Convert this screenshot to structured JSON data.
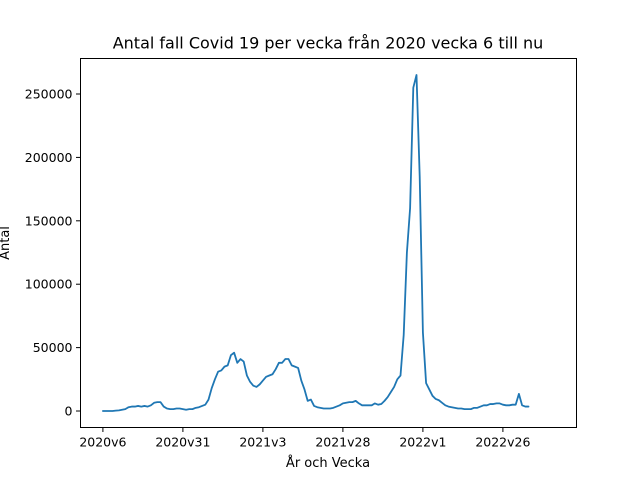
{
  "chart_data": {
    "type": "line",
    "title": "Antal fall Covid 19 per vecka från 2020 vecka 6 till nu",
    "xlabel": "År och Vecka",
    "ylabel": "Antal",
    "x_tick_labels": [
      "2020v6",
      "2020v31",
      "2021v3",
      "2021v28",
      "2022v1",
      "2022v26"
    ],
    "y_ticks": [
      0,
      50000,
      100000,
      150000,
      200000,
      250000
    ],
    "xlim": [
      -7,
      148
    ],
    "ylim": [
      -13000,
      278000
    ],
    "grid": false,
    "color": "#1f77b4",
    "series": [
      {
        "values": [
          0,
          0,
          0,
          0,
          300,
          500,
          1000,
          1500,
          3000,
          3500,
          3500,
          4000,
          3500,
          4000,
          3500,
          4500,
          6500,
          7000,
          7000,
          3500,
          2000,
          1500,
          1500,
          2000,
          2000,
          1500,
          1000,
          1500,
          1500,
          2500,
          3000,
          4000,
          5000,
          9000,
          18000,
          25000,
          31000,
          32000,
          35000,
          36000,
          44000,
          46000,
          38000,
          41000,
          39000,
          28000,
          23000,
          20000,
          19000,
          21000,
          24000,
          27000,
          28000,
          29000,
          33000,
          38000,
          38000,
          41000,
          41000,
          36000,
          35000,
          34000,
          24000,
          17000,
          8000,
          9000,
          4000,
          3000,
          2500,
          2000,
          2000,
          2000,
          2500,
          3500,
          4500,
          6000,
          6500,
          7000,
          7000,
          8000,
          6000,
          4500,
          4500,
          4500,
          4500,
          6000,
          5000,
          5500,
          8000,
          11000,
          15000,
          19000,
          25000,
          28000,
          60000,
          125000,
          160000,
          255000,
          265000,
          185000,
          62000,
          22000,
          17000,
          12000,
          9500,
          8500,
          6500,
          4500,
          3500,
          3000,
          2500,
          2000,
          2000,
          1500,
          1500,
          1500,
          2500,
          2500,
          3500,
          4500,
          4500,
          5500,
          5500,
          6000,
          6000,
          5000,
          4500,
          4500,
          5000,
          5000,
          13500,
          4500,
          3500,
          3500
        ]
      }
    ]
  }
}
